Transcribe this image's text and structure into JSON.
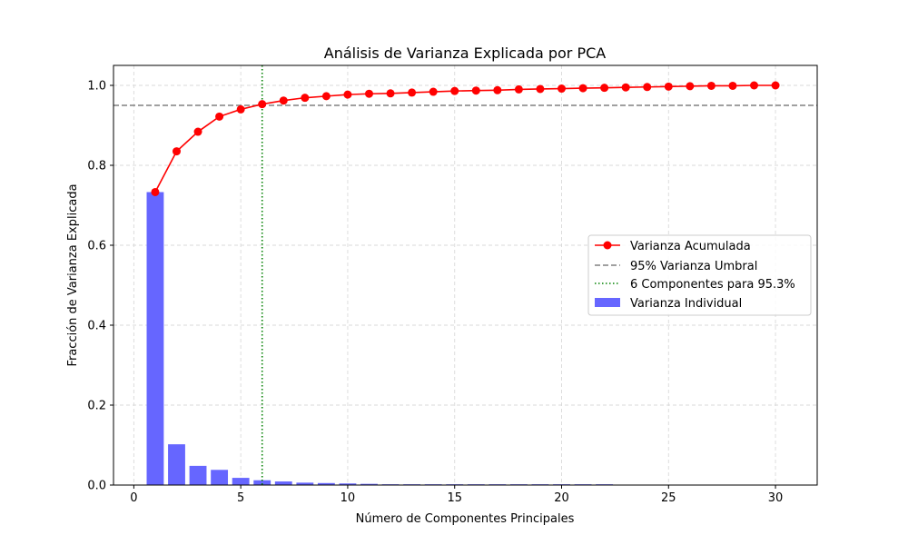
{
  "chart_data": {
    "type": "bar",
    "title": "Análisis de Varianza Explicada por PCA",
    "xlabel": "Número de Componentes Principales",
    "ylabel": "Fracción de Varianza Explicada",
    "xlim": [
      -0.95,
      31.95
    ],
    "ylim": [
      0,
      1.05
    ],
    "xticks": [
      0,
      5,
      10,
      15,
      20,
      25,
      30
    ],
    "xtick_labels": [
      "0",
      "5",
      "10",
      "15",
      "20",
      "25",
      "30"
    ],
    "yticks": [
      0.0,
      0.2,
      0.4,
      0.6,
      0.8,
      1.0
    ],
    "ytick_labels": [
      "0.0",
      "0.2",
      "0.4",
      "0.6",
      "0.8",
      "1.0"
    ],
    "grid": true,
    "legend_position": "center-right",
    "x": [
      1,
      2,
      3,
      4,
      5,
      6,
      7,
      8,
      9,
      10,
      11,
      12,
      13,
      14,
      15,
      16,
      17,
      18,
      19,
      20,
      21,
      22,
      23,
      24,
      25,
      26,
      27,
      28,
      29,
      30
    ],
    "series": [
      {
        "name": "Varianza Individual",
        "type": "bar",
        "color": "#6666ff",
        "values": [
          0.733,
          0.102,
          0.048,
          0.038,
          0.018,
          0.012,
          0.009,
          0.006,
          0.005,
          0.004,
          0.003,
          0.002,
          0.002,
          0.002,
          0.002,
          0.002,
          0.002,
          0.002,
          0.002,
          0.002,
          0.002,
          0.002,
          0.001,
          0.001,
          0.001,
          0.001,
          0.001,
          0.001,
          0.001,
          0.001
        ]
      },
      {
        "name": "Varianza Acumulada",
        "type": "line",
        "color": "#ff0000",
        "values": [
          0.733,
          0.835,
          0.884,
          0.922,
          0.94,
          0.953,
          0.962,
          0.969,
          0.973,
          0.977,
          0.979,
          0.98,
          0.982,
          0.984,
          0.986,
          0.987,
          0.988,
          0.99,
          0.991,
          0.992,
          0.993,
          0.994,
          0.995,
          0.996,
          0.997,
          0.998,
          0.999,
          0.999,
          1.0,
          1.0
        ]
      }
    ],
    "threshold": {
      "name": "95% Varianza Umbral",
      "value": 0.95,
      "color": "#808080"
    },
    "marker_line": {
      "name": "6 Componentes para 95.3%",
      "x": 6,
      "color": "#008000"
    }
  }
}
